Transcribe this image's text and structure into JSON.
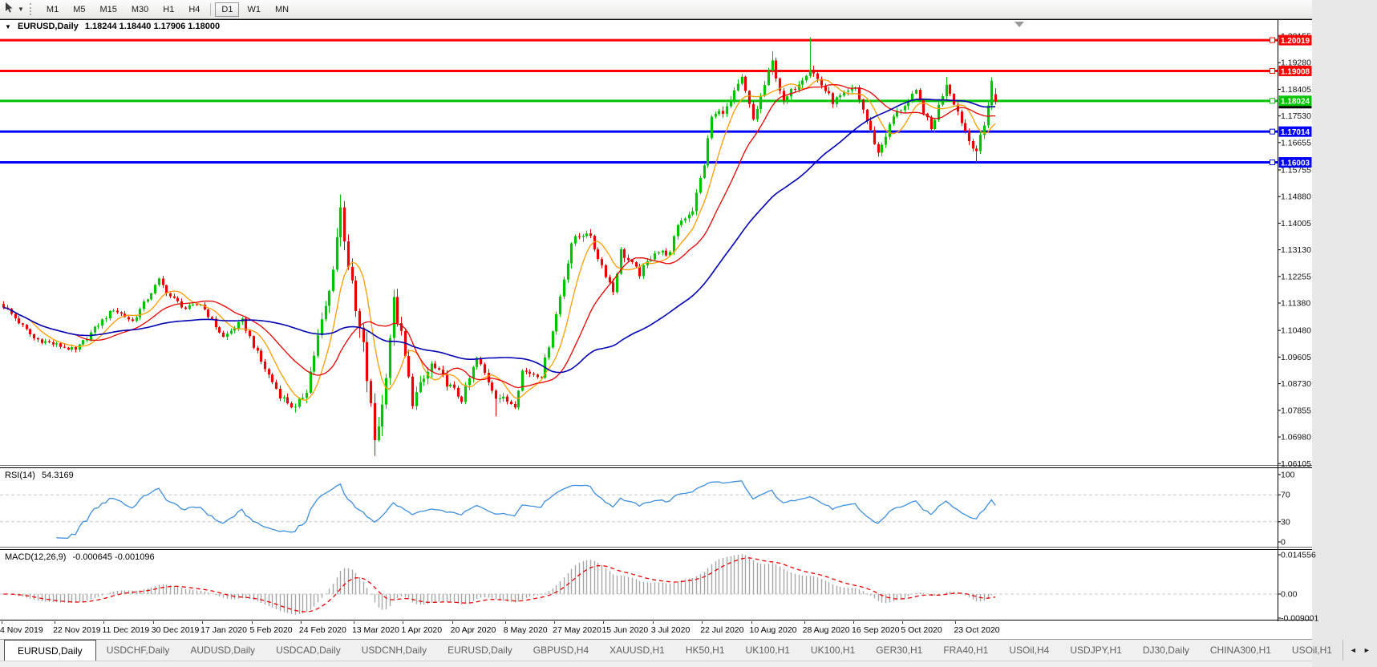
{
  "toolbar": {
    "timeframes": [
      "M1",
      "M5",
      "M15",
      "M30",
      "H1",
      "H4",
      "D1",
      "W1",
      "MN"
    ],
    "active_timeframe": "D1"
  },
  "chart": {
    "collapse_arrow": "▼",
    "title_symbol": "EURUSD,Daily",
    "title_ohlc": "1.18244 1.18440 1.17906 1.18000"
  },
  "chart_data": {
    "type": "candlestick",
    "symbol": "EURUSD",
    "period": "Daily",
    "visible_ohlc": {
      "open": 1.18244,
      "high": 1.1844,
      "low": 1.17906,
      "close": 1.18
    },
    "num_candles": 263,
    "candle_colors": {
      "up": "#00C400",
      "down": "#EA0000"
    },
    "price_axis_ticks": [
      "1.20155",
      "1.19280",
      "1.18405",
      "1.17530",
      "1.16655",
      "1.15755",
      "1.14880",
      "1.14005",
      "1.13130",
      "1.12255",
      "1.11380",
      "1.10480",
      "1.09605",
      "1.08730",
      "1.07855",
      "1.06980",
      "1.06105"
    ],
    "date_axis_labels": [
      {
        "i": 0,
        "label": "4 Nov 2019"
      },
      {
        "i": 14,
        "label": "22 Nov 2019"
      },
      {
        "i": 27,
        "label": "11 Dec 2019"
      },
      {
        "i": 40,
        "label": "30 Dec 2019"
      },
      {
        "i": 53,
        "label": "17 Jan 2020"
      },
      {
        "i": 66,
        "label": "5 Feb 2020"
      },
      {
        "i": 79,
        "label": "24 Feb 2020"
      },
      {
        "i": 93,
        "label": "13 Mar 2020"
      },
      {
        "i": 106,
        "label": "1 Apr 2020"
      },
      {
        "i": 119,
        "label": "20 Apr 2020"
      },
      {
        "i": 133,
        "label": "8 May 2020"
      },
      {
        "i": 146,
        "label": "27 May 2020"
      },
      {
        "i": 159,
        "label": "15 Jun 2020"
      },
      {
        "i": 172,
        "label": "3 Jul 2020"
      },
      {
        "i": 185,
        "label": "22 Jul 2020"
      },
      {
        "i": 198,
        "label": "10 Aug 2020"
      },
      {
        "i": 212,
        "label": "28 Aug 2020"
      },
      {
        "i": 225,
        "label": "16 Sep 2020"
      },
      {
        "i": 238,
        "label": "5 Oct 2020"
      },
      {
        "i": 252,
        "label": "23 Oct 2020"
      }
    ],
    "horizontal_lines": [
      {
        "price": 1.20019,
        "label": "1.20019",
        "color": "#FF0000"
      },
      {
        "price": 1.19008,
        "label": "1.19008",
        "color": "#FF0000"
      },
      {
        "price": 1.18024,
        "label": "1.18024",
        "color": "#00C400"
      },
      {
        "price": 1.17014,
        "label": "1.17014",
        "color": "#0000FF"
      },
      {
        "price": 1.16003,
        "label": "1.16003",
        "color": "#0000FF"
      }
    ],
    "bid_price_marker": {
      "price": 1.18,
      "color": "#000000"
    },
    "moving_averages": [
      {
        "period": 8,
        "color": "#FF9C00"
      },
      {
        "period": 20,
        "color": "#EA0000"
      },
      {
        "period": 55,
        "color": "#0000B4"
      }
    ],
    "price_anchors": [
      [
        0,
        1.1128,
        0.6
      ],
      [
        8,
        1.1022,
        0.6
      ],
      [
        14,
        1.1,
        0.6
      ],
      [
        19,
        1.0982,
        0.6
      ],
      [
        25,
        1.1068,
        0.6
      ],
      [
        29,
        1.1118,
        0.6
      ],
      [
        34,
        1.1078,
        0.6
      ],
      [
        41,
        1.1212,
        0.7
      ],
      [
        44,
        1.116,
        0.6
      ],
      [
        48,
        1.112,
        0.6
      ],
      [
        52,
        1.1135,
        0.6
      ],
      [
        58,
        1.1025,
        0.6
      ],
      [
        63,
        1.108,
        0.6
      ],
      [
        68,
        1.0945,
        0.8
      ],
      [
        73,
        1.0835,
        0.8
      ],
      [
        77,
        1.079,
        0.9
      ],
      [
        80,
        1.0855,
        1.1
      ],
      [
        83,
        1.1026,
        1.3
      ],
      [
        86,
        1.1173,
        1.6
      ],
      [
        89,
        1.1448,
        2.1
      ],
      [
        91,
        1.127,
        2.2
      ],
      [
        93,
        1.1105,
        2.2
      ],
      [
        95,
        1.099,
        2.2
      ],
      [
        98,
        1.069,
        2.2
      ],
      [
        100,
        1.08,
        2.0
      ],
      [
        102,
        1.103,
        1.9
      ],
      [
        103,
        1.114,
        1.8
      ],
      [
        105,
        1.103,
        1.5
      ],
      [
        108,
        1.0815,
        1.4
      ],
      [
        113,
        1.0935,
        1.2
      ],
      [
        118,
        1.0862,
        1.0
      ],
      [
        121,
        1.0822,
        1.0
      ],
      [
        125,
        1.0955,
        1.0
      ],
      [
        130,
        1.0833,
        0.9
      ],
      [
        135,
        1.0805,
        0.8
      ],
      [
        137,
        1.0915,
        0.8
      ],
      [
        142,
        1.09,
        0.7
      ],
      [
        146,
        1.1101,
        0.8
      ],
      [
        150,
        1.1337,
        1.0
      ],
      [
        154,
        1.1375,
        1.0
      ],
      [
        161,
        1.1177,
        0.9
      ],
      [
        163,
        1.1308,
        0.9
      ],
      [
        168,
        1.1234,
        0.8
      ],
      [
        172,
        1.1308,
        0.8
      ],
      [
        176,
        1.13,
        0.7
      ],
      [
        178,
        1.1398,
        0.8
      ],
      [
        182,
        1.1445,
        0.8
      ],
      [
        185,
        1.1596,
        0.9
      ],
      [
        187,
        1.175,
        0.9
      ],
      [
        191,
        1.1778,
        0.9
      ],
      [
        195,
        1.1875,
        0.9
      ],
      [
        198,
        1.174,
        0.9
      ],
      [
        203,
        1.193,
        0.9
      ],
      [
        206,
        1.1795,
        0.8
      ],
      [
        208,
        1.1833,
        0.8
      ],
      [
        213,
        1.191,
        0.9
      ],
      [
        219,
        1.18,
        0.8
      ],
      [
        225,
        1.1845,
        0.8
      ],
      [
        231,
        1.163,
        0.8
      ],
      [
        235,
        1.175,
        0.8
      ],
      [
        241,
        1.183,
        0.8
      ],
      [
        245,
        1.1708,
        0.8
      ],
      [
        249,
        1.1862,
        0.8
      ],
      [
        255,
        1.1672,
        0.8
      ],
      [
        257,
        1.164,
        0.8
      ],
      [
        259,
        1.172,
        0.9
      ],
      [
        261,
        1.187,
        1.0
      ],
      [
        262,
        1.18,
        0.7
      ]
    ],
    "high_spikes": [
      [
        89,
        1.1495
      ],
      [
        203,
        1.1966
      ],
      [
        213,
        1.2011
      ],
      [
        249,
        1.1881
      ]
    ],
    "low_spikes": [
      [
        77,
        1.0778
      ],
      [
        98,
        1.0636
      ],
      [
        130,
        1.0766
      ],
      [
        257,
        1.1603
      ]
    ],
    "indicators": {
      "rsi": {
        "label": "RSI(14)",
        "value": "54.3169",
        "period": 14,
        "color": "#3E8EDE",
        "levels": [
          70,
          30
        ],
        "scale_labels": [
          {
            "v": 100,
            "label": "100"
          },
          {
            "v": 70,
            "label": "70"
          },
          {
            "v": 30,
            "label": "30"
          },
          {
            "v": 0,
            "label": "0"
          }
        ]
      },
      "macd": {
        "label": "MACD(12,26,9)",
        "values": "-0.000645 -0.001096",
        "fast": 12,
        "slow": 26,
        "signal": 9,
        "hist_color": "#A6A6A6",
        "signal_color": "#EA0000",
        "scale_labels": [
          {
            "v": 0.014556,
            "label": "0.014556"
          },
          {
            "v": 0,
            "label": "0.00"
          },
          {
            "v": -0.009001,
            "label": "-0.009001"
          }
        ]
      }
    }
  },
  "tabs": {
    "active_index": 0,
    "items": [
      "EURUSD,Daily",
      "USDCHF,Daily",
      "AUDUSD,Daily",
      "USDCAD,Daily",
      "USDCNH,Daily",
      "EURUSD,Daily",
      "GBPUSD,H4",
      "XAUUSD,H1",
      "HK50,H1",
      "UK100,H1",
      "UK100,H1",
      "GER30,H1",
      "FRA40,H1",
      "USOil,H4",
      "USDJPY,H1",
      "DJ30,Daily",
      "CHINA300,H1",
      "USOil,H1"
    ]
  }
}
